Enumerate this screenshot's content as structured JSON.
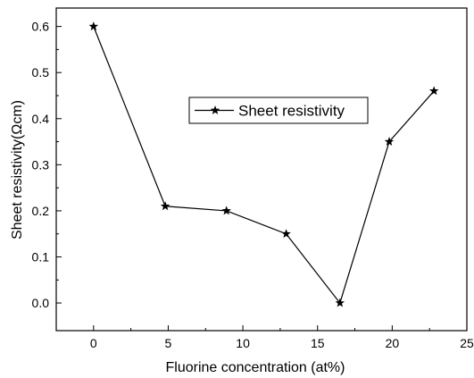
{
  "chart_data": {
    "type": "line",
    "title": "",
    "xlabel": "Fluorine concentration (at%)",
    "ylabel": "Sheet resistivity(Ωcm)",
    "xlim": [
      -2.5,
      25
    ],
    "ylim": [
      -0.06,
      0.64
    ],
    "xticks": [
      0,
      5,
      10,
      15,
      20,
      25
    ],
    "xtick_labels": [
      "0",
      "5",
      "10",
      "15",
      "20",
      "25"
    ],
    "yticks": [
      0.0,
      0.1,
      0.2,
      0.3,
      0.4,
      0.5,
      0.6
    ],
    "ytick_labels": [
      "0.0",
      "0.1",
      "0.2",
      "0.3",
      "0.4",
      "0.5",
      "0.6"
    ],
    "grid": false,
    "legend_position": "center-right",
    "marker": "star",
    "series": [
      {
        "name": "Sheet resistivity",
        "color": "#000000",
        "x": [
          0,
          4.8,
          8.9,
          12.9,
          16.5,
          19.8,
          22.8
        ],
        "y": [
          0.6,
          0.21,
          0.2,
          0.15,
          0.0,
          0.35,
          0.46
        ]
      }
    ]
  }
}
